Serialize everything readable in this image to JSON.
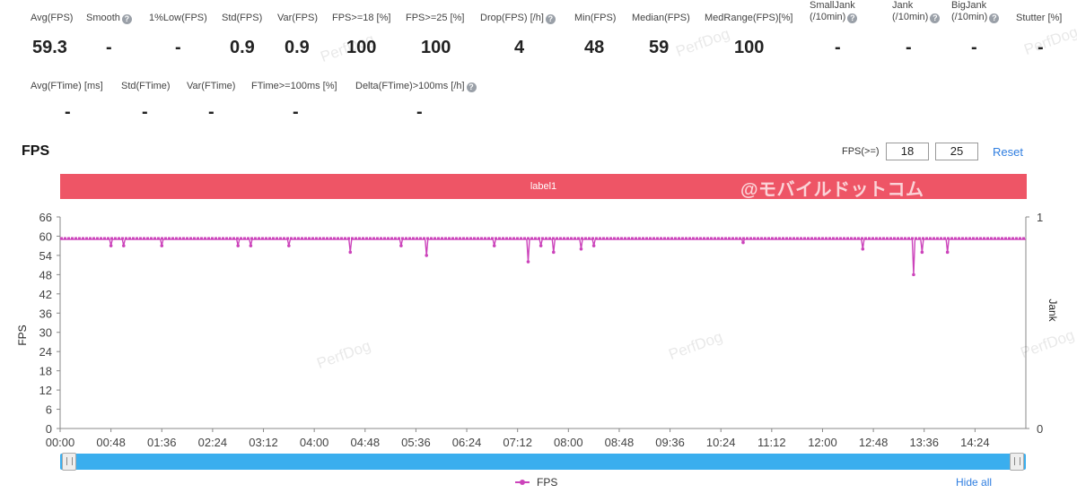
{
  "stats_row1": [
    {
      "label": "Avg(FPS)",
      "value": "59.3",
      "help": false
    },
    {
      "label": "Smooth",
      "value": "-",
      "help": true
    },
    {
      "label": "1%Low(FPS)",
      "value": "-",
      "help": false
    },
    {
      "label": "Std(FPS)",
      "value": "0.9",
      "help": false
    },
    {
      "label": "Var(FPS)",
      "value": "0.9",
      "help": false
    },
    {
      "label": "FPS>=18 [%]",
      "value": "100",
      "help": false
    },
    {
      "label": "FPS>=25 [%]",
      "value": "100",
      "help": false
    },
    {
      "label": "Drop(FPS) [/h]",
      "value": "4",
      "help": true
    },
    {
      "label": "Min(FPS)",
      "value": "48",
      "help": false
    },
    {
      "label": "Median(FPS)",
      "value": "59",
      "help": false
    },
    {
      "label": "MedRange(FPS)[%]",
      "value": "100",
      "help": false
    },
    {
      "label": "SmallJank",
      "label2": "(/10min)",
      "value": "-",
      "help": true
    },
    {
      "label": "Jank",
      "label2": "(/10min)",
      "value": "-",
      "help": true
    },
    {
      "label": "BigJank",
      "label2": "(/10min)",
      "value": "-",
      "help": true
    },
    {
      "label": "Stutter [%]",
      "value": "-",
      "help": false
    }
  ],
  "stats_row2": [
    {
      "label": "Avg(FTime) [ms]",
      "value": "-",
      "help": false
    },
    {
      "label": "Std(FTime)",
      "value": "-",
      "help": false
    },
    {
      "label": "Var(FTime)",
      "value": "-",
      "help": false
    },
    {
      "label": "FTime>=100ms [%]",
      "value": "-",
      "help": false
    },
    {
      "label": "Delta(FTime)>100ms [/h]",
      "value": "-",
      "help": true
    }
  ],
  "section_title": "FPS",
  "fps_threshold": {
    "label": "FPS(>=)",
    "value1": "18",
    "value2": "25",
    "reset": "Reset"
  },
  "label_band": {
    "text": "label1",
    "watermark": "@モバイルドットコム",
    "color": "#ee5566"
  },
  "watermark_text": "PerfDog",
  "chart_data": {
    "type": "line",
    "ylabel": "FPS",
    "y2label": "Jank",
    "ylim": [
      0,
      66
    ],
    "yticks": [
      "0",
      "6",
      "12",
      "18",
      "24",
      "30",
      "36",
      "42",
      "48",
      "54",
      "60",
      "66"
    ],
    "y2ticks": [
      "0",
      "1"
    ],
    "xticks": [
      "00:00",
      "00:48",
      "01:36",
      "02:24",
      "03:12",
      "04:00",
      "04:48",
      "05:36",
      "06:24",
      "07:12",
      "08:00",
      "08:48",
      "09:36",
      "10:24",
      "11:12",
      "12:00",
      "12:48",
      "13:36",
      "14:24"
    ],
    "baseline": 59,
    "dips": [
      {
        "t": "00:48",
        "v": 57
      },
      {
        "t": "01:00",
        "v": 57
      },
      {
        "t": "01:36",
        "v": 57
      },
      {
        "t": "02:48",
        "v": 57
      },
      {
        "t": "03:00",
        "v": 57
      },
      {
        "t": "03:36",
        "v": 57
      },
      {
        "t": "04:34",
        "v": 55
      },
      {
        "t": "05:22",
        "v": 57
      },
      {
        "t": "05:46",
        "v": 54
      },
      {
        "t": "06:50",
        "v": 57
      },
      {
        "t": "07:22",
        "v": 52
      },
      {
        "t": "07:34",
        "v": 57
      },
      {
        "t": "07:46",
        "v": 55
      },
      {
        "t": "08:12",
        "v": 56
      },
      {
        "t": "08:24",
        "v": 57
      },
      {
        "t": "10:45",
        "v": 58
      },
      {
        "t": "12:38",
        "v": 56
      },
      {
        "t": "13:26",
        "v": 48
      },
      {
        "t": "13:34",
        "v": 55
      },
      {
        "t": "13:58",
        "v": 55
      }
    ],
    "series": [
      {
        "name": "FPS",
        "color": "#cc44bb"
      }
    ],
    "grid": false,
    "legend_position": "bottom-center"
  },
  "legend": {
    "series_label": "FPS",
    "hide_all": "Hide all"
  },
  "colors": {
    "accent": "#2f7ee0",
    "series": "#cc44bb",
    "slider": "#3aaeee"
  }
}
